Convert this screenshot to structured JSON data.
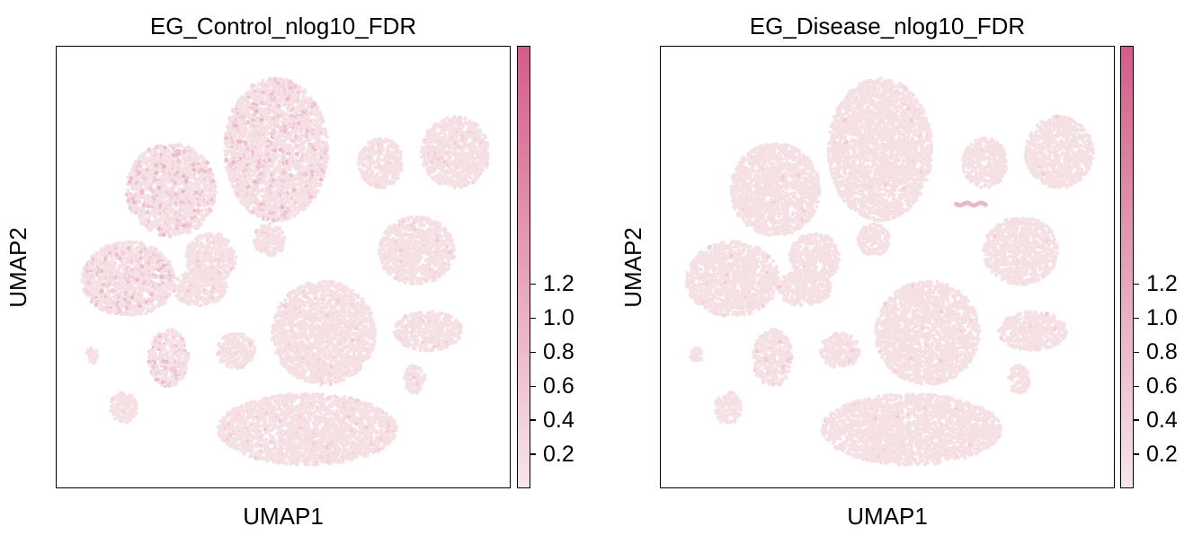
{
  "chart_data": [
    {
      "type": "scatter",
      "title": "EG_Control_nlog10_FDR",
      "xlabel": "UMAP1",
      "ylabel": "UMAP2",
      "colorbar": {
        "ticks": [
          0.2,
          0.4,
          0.6,
          0.8,
          1.0,
          1.2
        ],
        "tick_labels": [
          "0.2",
          "0.4",
          "0.6",
          "0.8",
          "1.0",
          "1.2"
        ],
        "range": [
          0.0,
          2.6
        ],
        "cmap": [
          "#f7e6e8",
          "#d45c8a"
        ]
      },
      "background_value": 0.05,
      "highlighted_regions": [
        {
          "region": "top-center cluster",
          "value": 0.45
        },
        {
          "region": "upper-left cluster",
          "value": 0.35
        },
        {
          "region": "left-middle cluster",
          "value": 0.5
        },
        {
          "region": "small left-lower cluster",
          "value": 0.45
        }
      ]
    },
    {
      "type": "scatter",
      "title": "EG_Disease_nlog10_FDR",
      "xlabel": "UMAP1",
      "ylabel": "UMAP2",
      "colorbar": {
        "ticks": [
          0.2,
          0.4,
          0.6,
          0.8,
          1.0,
          1.2
        ],
        "tick_labels": [
          "0.2",
          "0.4",
          "0.6",
          "0.8",
          "1.0",
          "1.2"
        ],
        "range": [
          0.0,
          2.6
        ],
        "cmap": [
          "#f7e6e8",
          "#d45c8a"
        ]
      },
      "background_value": 0.05,
      "highlighted_regions": [
        {
          "region": "small center streak",
          "value": 0.6
        },
        {
          "region": "small left-lower cluster",
          "value": 0.35
        }
      ]
    }
  ]
}
